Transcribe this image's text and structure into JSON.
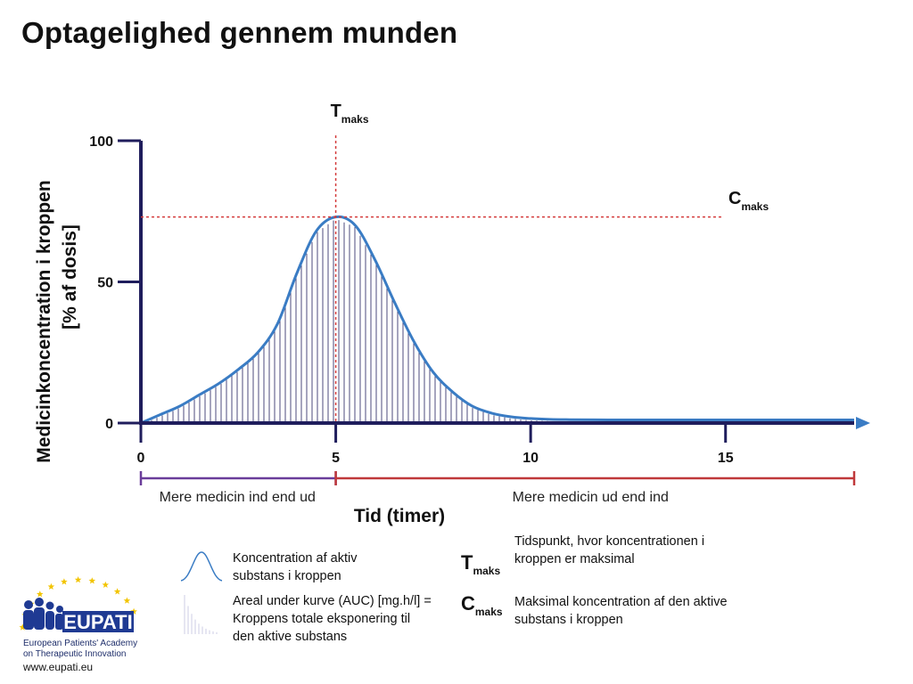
{
  "page": {
    "title": "Optagelighed gennem munden"
  },
  "chart_data": {
    "type": "area",
    "title": "Optagelighed gennem munden",
    "xlabel": "Tid (timer)",
    "ylabel_line1": "Medicinkoncentration i kroppen",
    "ylabel_line2": "[% af dosis]",
    "xlim": [
      0,
      18.3
    ],
    "ylim": [
      0,
      100
    ],
    "x_ticks": [
      0,
      5,
      10,
      15
    ],
    "x_tick_labels": [
      "0",
      "5",
      "10",
      "15"
    ],
    "y_ticks": [
      0,
      50,
      100
    ],
    "y_tick_labels": [
      "0",
      "50",
      "100"
    ],
    "grid": false,
    "series": [
      {
        "x": [
          0,
          0.5,
          1,
          1.5,
          2,
          2.5,
          3,
          3.5,
          4,
          4.5,
          5,
          5.5,
          6,
          6.5,
          7,
          7.5,
          8,
          8.5,
          9,
          9.5,
          10,
          10.5,
          11,
          12,
          13,
          14,
          15,
          16,
          17,
          18.3
        ],
        "y": [
          0,
          3,
          6,
          10,
          14,
          19,
          25,
          35,
          53,
          68,
          73,
          70,
          58,
          43,
          29,
          18,
          11,
          6,
          3.5,
          2.2,
          1.6,
          1.3,
          1.2,
          1.1,
          1.1,
          1.1,
          1.1,
          1.1,
          1.1,
          1.1
        ]
      }
    ],
    "tmax_x": 5,
    "cmax_y": 73,
    "annotations": {
      "tmax_main": "T",
      "tmax_sub": "maks",
      "cmax_main": "C",
      "cmax_sub": "maks"
    },
    "phases": [
      {
        "label": "Mere medicin ind end ud",
        "x_start": 0,
        "x_end": 5,
        "color": "#6a3d9a"
      },
      {
        "label": "Mere medicin ud end ind",
        "x_start": 5,
        "x_end": 18.3,
        "color": "#c0393b"
      }
    ],
    "colors": {
      "curve": "#3a7cc4",
      "axis": "#1f1d5c",
      "hatch": "#1f1d5c",
      "guide": "#d43c3c"
    }
  },
  "legend": {
    "curve_text": "Koncentration af aktiv substans i kroppen",
    "auc_text": "Areal under kurve (AUC) [mg.h/l] = Kroppens totale eksponering til den aktive substans",
    "tmax_main": "T",
    "tmax_sub": "maks",
    "tmax_text": "Tidspunkt, hvor koncentrationen i kroppen er maksimal",
    "cmax_main": "C",
    "cmax_sub": "maks",
    "cmax_text": "Maksimal koncentration af den aktive substans i kroppen"
  },
  "logo": {
    "name": "EUPATI",
    "line1": "European Patients' Academy",
    "line2": "on Therapeutic Innovation",
    "url": "www.eupati.eu",
    "colors": {
      "blue": "#1f3a93",
      "star": "#f2c400",
      "accent": "#d94a39"
    }
  }
}
